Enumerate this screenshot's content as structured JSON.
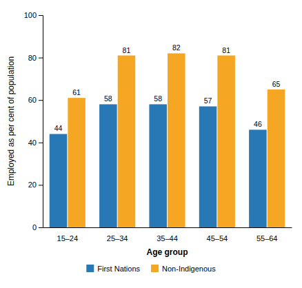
{
  "chart_data": {
    "type": "bar",
    "categories": [
      "15–24",
      "25–34",
      "35–44",
      "45–54",
      "55–64"
    ],
    "series": [
      {
        "name": "First Nations",
        "color": "#2878B5",
        "values": [
          44,
          58,
          58,
          57,
          46
        ]
      },
      {
        "name": "Non-Indigenous",
        "color": "#F5A623",
        "values": [
          61,
          81,
          82,
          81,
          65
        ]
      }
    ],
    "xlabel": "Age group",
    "ylabel": "Employed as per cent of population",
    "ylim": [
      0,
      100
    ],
    "yticks": [
      0,
      20,
      40,
      60,
      80,
      100
    ],
    "data_labels": true,
    "legend": "bottom",
    "grid": false
  }
}
